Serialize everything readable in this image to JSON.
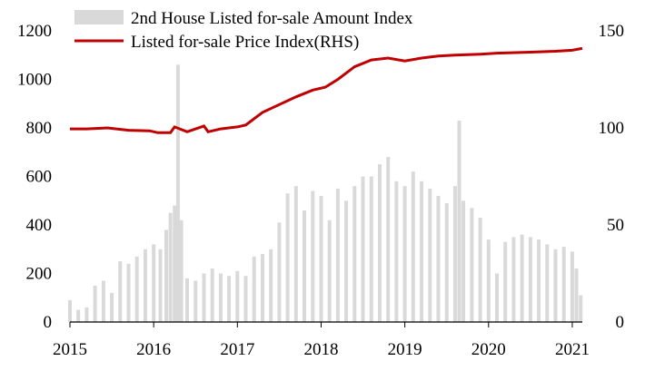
{
  "chart_data": {
    "type": "bar+line",
    "title": "",
    "xlabel": "",
    "ylabel": "",
    "y2label": "",
    "xlim": [
      2015,
      2021.12
    ],
    "ylim": [
      0,
      1200
    ],
    "y2lim": [
      0,
      150
    ],
    "x_ticks": [
      "2015",
      "2016",
      "2017",
      "2018",
      "2019",
      "2020",
      "2021"
    ],
    "y_ticks": [
      "0",
      "200",
      "400",
      "600",
      "800",
      "1000",
      "1200"
    ],
    "y2_ticks": [
      "0",
      "50",
      "100",
      "150"
    ],
    "grid": false,
    "legend_position": "top-left",
    "colors": {
      "bars": "#d9d9d9",
      "line": "#c00000"
    },
    "series": [
      {
        "name": "2nd House Listed for-sale Amount Index",
        "type": "bar",
        "axis": "left",
        "x": [
          2015.0,
          2015.1,
          2015.2,
          2015.3,
          2015.4,
          2015.5,
          2015.6,
          2015.7,
          2015.8,
          2015.9,
          2016.0,
          2016.08,
          2016.15,
          2016.2,
          2016.25,
          2016.29,
          2016.33,
          2016.4,
          2016.5,
          2016.6,
          2016.7,
          2016.8,
          2016.9,
          2017.0,
          2017.1,
          2017.2,
          2017.3,
          2017.4,
          2017.5,
          2017.6,
          2017.7,
          2017.8,
          2017.9,
          2018.0,
          2018.1,
          2018.2,
          2018.3,
          2018.4,
          2018.5,
          2018.6,
          2018.7,
          2018.8,
          2018.9,
          2019.0,
          2019.1,
          2019.2,
          2019.3,
          2019.4,
          2019.5,
          2019.6,
          2019.65,
          2019.7,
          2019.8,
          2019.9,
          2020.0,
          2020.1,
          2020.2,
          2020.3,
          2020.4,
          2020.5,
          2020.6,
          2020.7,
          2020.8,
          2020.9,
          2021.0,
          2021.05,
          2021.1
        ],
        "values": [
          90,
          50,
          60,
          150,
          170,
          120,
          250,
          240,
          270,
          300,
          320,
          300,
          380,
          450,
          480,
          1060,
          420,
          180,
          170,
          200,
          220,
          200,
          190,
          210,
          190,
          270,
          280,
          300,
          410,
          530,
          560,
          460,
          540,
          520,
          420,
          550,
          500,
          560,
          600,
          600,
          650,
          680,
          580,
          560,
          620,
          580,
          550,
          520,
          490,
          560,
          830,
          500,
          470,
          430,
          340,
          200,
          330,
          350,
          360,
          350,
          340,
          320,
          300,
          310,
          290,
          220,
          110
        ]
      },
      {
        "name": "Listed for-sale Price Index(RHS)",
        "type": "line",
        "axis": "right",
        "x": [
          2015.0,
          2015.2,
          2015.45,
          2015.7,
          2015.95,
          2016.05,
          2016.2,
          2016.25,
          2016.4,
          2016.6,
          2016.65,
          2016.8,
          2017.0,
          2017.1,
          2017.3,
          2017.5,
          2017.7,
          2017.9,
          2018.05,
          2018.2,
          2018.4,
          2018.6,
          2018.8,
          2019.0,
          2019.2,
          2019.4,
          2019.6,
          2019.9,
          2020.1,
          2020.5,
          2020.8,
          2021.0,
          2021.12
        ],
        "values": [
          99.5,
          99.5,
          100,
          98.8,
          98.5,
          97.5,
          97.5,
          100.5,
          98,
          101,
          98,
          99.5,
          100.5,
          101.5,
          108,
          112,
          116,
          119.5,
          121,
          125,
          131.5,
          135,
          136,
          134.5,
          136,
          137,
          137.5,
          138,
          138.5,
          139,
          139.5,
          140,
          141
        ]
      }
    ]
  }
}
